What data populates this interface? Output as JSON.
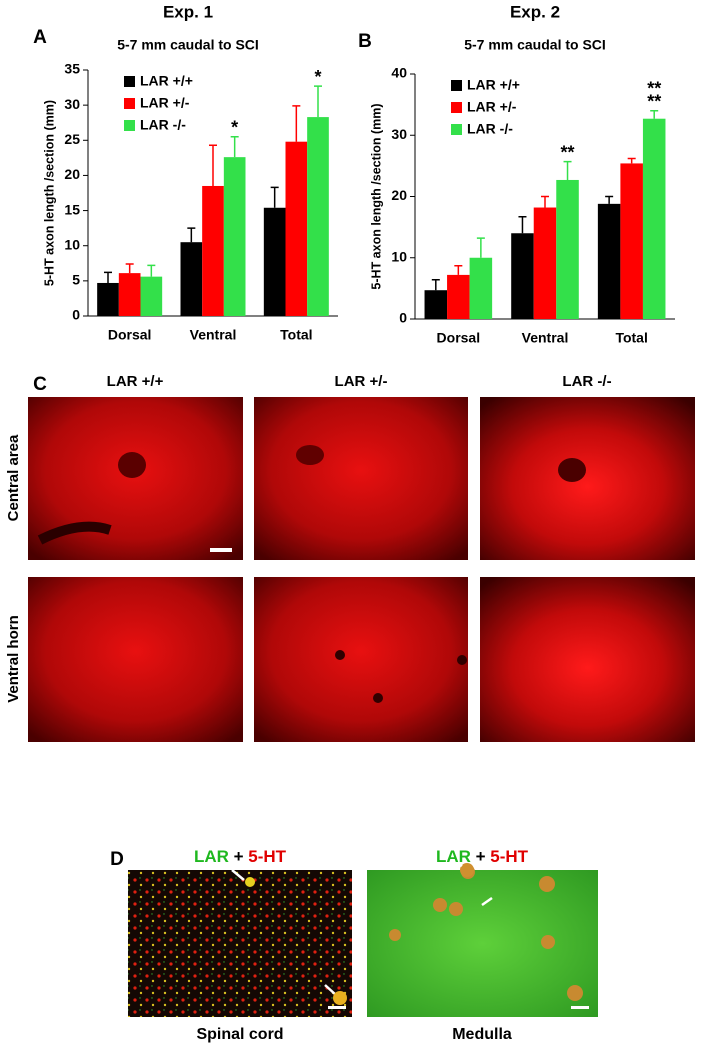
{
  "chart_data": [
    {
      "type": "bar",
      "panel": "A",
      "title": "Exp. 1",
      "subtitle": "5-7 mm caudal to SCI",
      "y_label": "5-HT axon length /section (mm)",
      "categories": [
        "Dorsal",
        "Ventral",
        "Total"
      ],
      "series": [
        {
          "name": "LAR +/+",
          "color": "#000000",
          "values": [
            4.7,
            10.5,
            15.4
          ],
          "errors": [
            1.5,
            2.0,
            2.9
          ]
        },
        {
          "name": "LAR +/-",
          "color": "#ff0000",
          "values": [
            6.1,
            18.5,
            24.8
          ],
          "errors": [
            1.3,
            5.8,
            5.1
          ]
        },
        {
          "name": "LAR -/-",
          "color": "#33e04a",
          "values": [
            5.6,
            22.6,
            28.3
          ],
          "errors": [
            1.6,
            2.9,
            4.4
          ],
          "significance": [
            null,
            [
              {
                "text": "*",
                "color": "#000000"
              }
            ],
            [
              {
                "text": "*",
                "color": "#000000"
              }
            ]
          ]
        }
      ],
      "ylim": [
        0,
        35
      ],
      "yticks": [
        0,
        5,
        10,
        15,
        20,
        25,
        30,
        35
      ],
      "grid": false,
      "legend": "top-left"
    },
    {
      "type": "bar",
      "panel": "B",
      "title": "Exp. 2",
      "subtitle": "5-7 mm caudal to SCI",
      "y_label": "5-HT axon length /section (mm)",
      "categories": [
        "Dorsal",
        "Ventral",
        "Total"
      ],
      "series": [
        {
          "name": "LAR +/+",
          "color": "#000000",
          "values": [
            4.7,
            14.0,
            18.8
          ],
          "errors": [
            1.7,
            2.7,
            1.2
          ]
        },
        {
          "name": "LAR +/-",
          "color": "#ff0000",
          "values": [
            7.2,
            18.2,
            25.4
          ],
          "errors": [
            1.5,
            1.8,
            0.8
          ]
        },
        {
          "name": "LAR -/-",
          "color": "#33e04a",
          "values": [
            10.0,
            22.7,
            32.7
          ],
          "errors": [
            3.2,
            3.0,
            1.3
          ],
          "significance": [
            null,
            [
              {
                "text": "**",
                "color": "#000000"
              }
            ],
            [
              {
                "text": "**",
                "color": "#000000"
              },
              {
                "text": "**",
                "color": "#e00000"
              }
            ]
          ]
        }
      ],
      "ylim": [
        0,
        40
      ],
      "yticks": [
        0,
        10,
        20,
        30,
        40
      ],
      "grid": false,
      "legend": "top-left"
    }
  ],
  "panels": {
    "C": {
      "letter": "C",
      "columns": [
        "LAR +/+",
        "LAR +/-",
        "LAR -/-"
      ],
      "rows": [
        "Central area",
        "Ventral horn"
      ]
    },
    "D": {
      "letter": "D",
      "images": [
        {
          "stain": [
            {
              "text": "LAR",
              "color": "#1fb81f"
            },
            {
              "text": " + ",
              "color": "#000000"
            },
            {
              "text": "5-HT",
              "color": "#e00000"
            }
          ],
          "caption": "Spinal cord"
        },
        {
          "stain": [
            {
              "text": "LAR",
              "color": "#1fb81f"
            },
            {
              "text": " + ",
              "color": "#000000"
            },
            {
              "text": "5-HT",
              "color": "#e00000"
            }
          ],
          "caption": "Medulla"
        }
      ]
    }
  }
}
